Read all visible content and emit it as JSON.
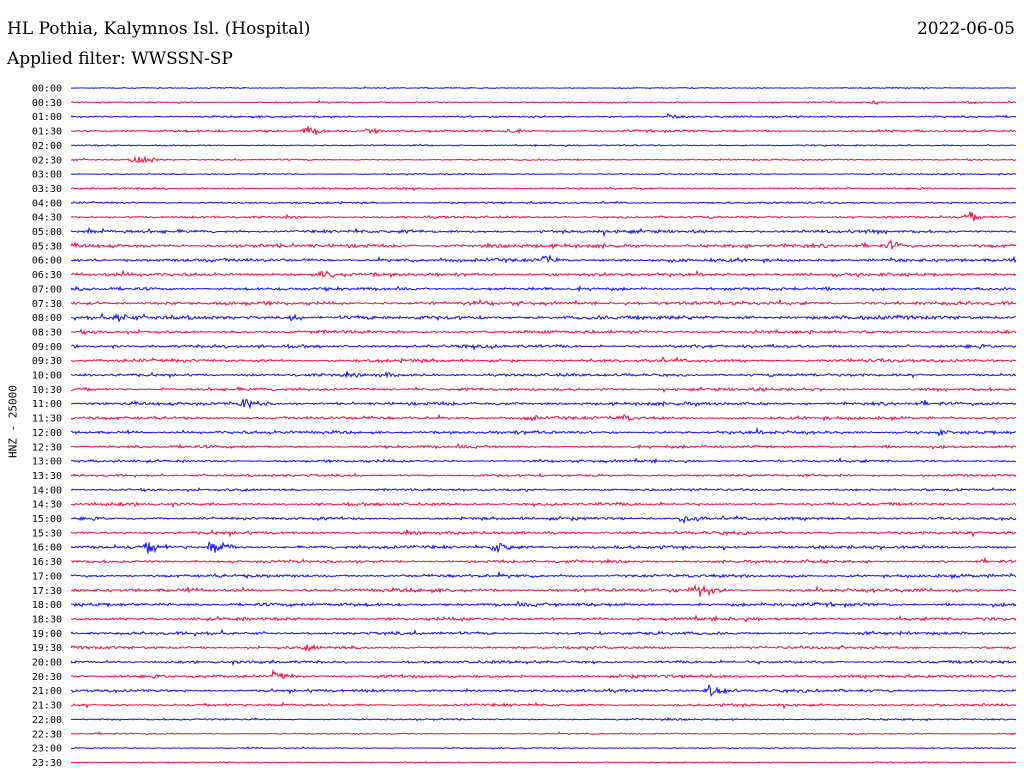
{
  "header": {
    "title": "HL Pothia, Kalymnos Isl. (Hospital)",
    "date": "2022-06-05",
    "filter": "Applied filter: WWSSN-SP"
  },
  "chart_data": {
    "type": "line",
    "title": "HL Pothia, Kalymnos Isl. (Hospital)",
    "subtitle": "Applied filter: WWSSN-SP",
    "date": "2022-06-05",
    "ylabel": "HNZ - 25000",
    "xlabel": "",
    "row_times": [
      "00:00",
      "00:30",
      "01:00",
      "01:30",
      "02:00",
      "02:30",
      "03:00",
      "03:30",
      "04:00",
      "04:30",
      "05:00",
      "05:30",
      "06:00",
      "06:30",
      "07:00",
      "07:30",
      "08:00",
      "08:30",
      "09:00",
      "09:30",
      "10:00",
      "10:30",
      "11:00",
      "11:30",
      "12:00",
      "12:30",
      "13:00",
      "13:30",
      "14:00",
      "14:30",
      "15:00",
      "15:30",
      "16:00",
      "16:30",
      "17:00",
      "17:30",
      "18:00",
      "18:30",
      "19:00",
      "19:30",
      "20:00",
      "20:30",
      "21:00",
      "21:30",
      "22:00",
      "22:30",
      "23:00",
      "23:30"
    ],
    "row_minutes": 30,
    "colors": [
      "#1010ee",
      "#ee1040"
    ],
    "noise_level": [
      0.5,
      0.6,
      0.8,
      1.0,
      0.7,
      0.7,
      0.6,
      0.8,
      0.8,
      1.0,
      1.4,
      1.6,
      1.5,
      1.5,
      1.4,
      1.6,
      1.7,
      1.4,
      1.4,
      1.4,
      1.3,
      1.3,
      1.4,
      1.4,
      1.4,
      1.2,
      1.1,
      1.1,
      1.1,
      1.3,
      1.3,
      1.3,
      1.4,
      1.3,
      1.4,
      1.5,
      1.5,
      1.4,
      1.3,
      1.3,
      1.2,
      1.3,
      1.2,
      1.1,
      0.8,
      0.6,
      0.5,
      0.5
    ],
    "events": [
      {
        "row": 1,
        "minute": 25.5,
        "amp": 3
      },
      {
        "row": 1,
        "minute": 28.5,
        "amp": 3
      },
      {
        "row": 2,
        "minute": 19.0,
        "amp": 4
      },
      {
        "row": 3,
        "minute": 7.5,
        "amp": 7
      },
      {
        "row": 3,
        "minute": 9.5,
        "amp": 5
      },
      {
        "row": 3,
        "minute": 13.8,
        "amp": 5
      },
      {
        "row": 5,
        "minute": 2.1,
        "amp": 8
      },
      {
        "row": 9,
        "minute": 28.5,
        "amp": 6
      },
      {
        "row": 10,
        "minute": 0.5,
        "amp": 5
      },
      {
        "row": 11,
        "minute": 26.0,
        "amp": 7
      },
      {
        "row": 12,
        "minute": 15.0,
        "amp": 7
      },
      {
        "row": 13,
        "minute": 8.0,
        "amp": 6
      },
      {
        "row": 16,
        "minute": 1.5,
        "amp": 7
      },
      {
        "row": 16,
        "minute": 7.0,
        "amp": 5
      },
      {
        "row": 20,
        "minute": 10.0,
        "amp": 4
      },
      {
        "row": 22,
        "minute": 5.5,
        "amp": 10
      },
      {
        "row": 23,
        "minute": 14.5,
        "amp": 6
      },
      {
        "row": 23,
        "minute": 17.5,
        "amp": 6
      },
      {
        "row": 24,
        "minute": 27.5,
        "amp": 5
      },
      {
        "row": 30,
        "minute": 19.5,
        "amp": 9
      },
      {
        "row": 32,
        "minute": 2.5,
        "amp": 9
      },
      {
        "row": 32,
        "minute": 4.5,
        "amp": 13
      },
      {
        "row": 32,
        "minute": 13.5,
        "amp": 10
      },
      {
        "row": 35,
        "minute": 19.8,
        "amp": 15
      },
      {
        "row": 39,
        "minute": 7.5,
        "amp": 5
      },
      {
        "row": 41,
        "minute": 6.5,
        "amp": 7
      },
      {
        "row": 42,
        "minute": 20.3,
        "amp": 12
      }
    ]
  }
}
